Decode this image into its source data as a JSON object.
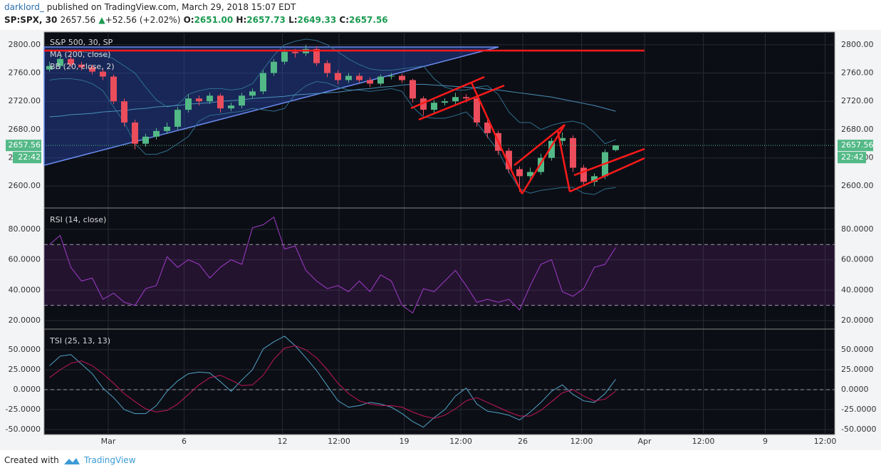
{
  "header": {
    "author": "darklord_",
    "published": "published on TradingView.com, March 29, 2018 15:07 EDT",
    "symbol": "SP:SPX, 30",
    "price": "2657.56",
    "change": "+52.56 (+2.02%)",
    "open_label": "O:",
    "open": "2651.00",
    "high_label": "H:",
    "high": "2657.73",
    "low_label": "L:",
    "low": "2649.33",
    "close_label": "C:",
    "close": "2657.56"
  },
  "footer": {
    "created_with": "Created with",
    "brand": "TradingView"
  },
  "chart_data": [
    {
      "type": "candlestick",
      "title": "S&P 500, 30, SP",
      "up_color": "#53b987",
      "down_color": "#eb4d5c",
      "open": [
        2765,
        2770,
        2780,
        2772,
        2768,
        2762,
        2755,
        2720,
        2690,
        2660,
        2670,
        2678,
        2684,
        2708,
        2724,
        2720,
        2728,
        2710,
        2714,
        2728,
        2734,
        2760,
        2776,
        2790,
        2788,
        2794,
        2774,
        2760,
        2750,
        2756,
        2750,
        2745,
        2755,
        2756,
        2750,
        2724,
        2708,
        2718,
        2720,
        2726,
        2724,
        2690,
        2675,
        2650,
        2624,
        2614,
        2620,
        2640,
        2664,
        2668,
        2626,
        2606,
        2614,
        2651
      ],
      "high": [
        2776,
        2784,
        2786,
        2776,
        2772,
        2766,
        2758,
        2724,
        2694,
        2674,
        2682,
        2690,
        2712,
        2730,
        2728,
        2732,
        2731,
        2718,
        2732,
        2738,
        2764,
        2780,
        2794,
        2794,
        2800,
        2798,
        2778,
        2764,
        2760,
        2760,
        2754,
        2758,
        2760,
        2759,
        2752,
        2727,
        2722,
        2724,
        2732,
        2730,
        2726,
        2694,
        2678,
        2654,
        2628,
        2626,
        2646,
        2668,
        2676,
        2672,
        2630,
        2618,
        2652,
        2657.73
      ],
      "low": [
        2762,
        2766,
        2768,
        2764,
        2758,
        2750,
        2716,
        2684,
        2652,
        2656,
        2666,
        2674,
        2680,
        2704,
        2714,
        2716,
        2704,
        2706,
        2710,
        2724,
        2730,
        2756,
        2772,
        2782,
        2784,
        2770,
        2754,
        2744,
        2746,
        2746,
        2740,
        2742,
        2751,
        2746,
        2718,
        2700,
        2704,
        2714,
        2716,
        2718,
        2684,
        2668,
        2644,
        2618,
        2592,
        2608,
        2616,
        2636,
        2658,
        2620,
        2600,
        2600,
        2610,
        2649.33
      ],
      "close": [
        2770,
        2780,
        2772,
        2768,
        2762,
        2755,
        2720,
        2690,
        2660,
        2670,
        2678,
        2684,
        2708,
        2724,
        2720,
        2728,
        2710,
        2714,
        2728,
        2734,
        2760,
        2776,
        2790,
        2788,
        2794,
        2774,
        2760,
        2750,
        2756,
        2750,
        2745,
        2755,
        2756,
        2750,
        2724,
        2708,
        2718,
        2720,
        2726,
        2724,
        2690,
        2675,
        2650,
        2624,
        2614,
        2620,
        2640,
        2664,
        2668,
        2626,
        2606,
        2614,
        2648,
        2657.56
      ],
      "series": [
        {
          "name": "MA (200, close)",
          "color": "#4a8fb8",
          "values": [
            2698,
            2699,
            2701,
            2702,
            2703,
            2705,
            2706,
            2707,
            2709,
            2710,
            2712,
            2713,
            2714,
            2716,
            2717,
            2718,
            2720,
            2721,
            2722,
            2724,
            2725,
            2726,
            2727,
            2729,
            2730,
            2731,
            2732,
            2733,
            2735,
            2737,
            2738,
            2740,
            2741,
            2743,
            2744,
            2744,
            2743,
            2742,
            2741,
            2740,
            2739,
            2737,
            2736,
            2734,
            2732,
            2730,
            2728,
            2726,
            2723,
            2720,
            2717,
            2714,
            2710,
            2706
          ]
        }
      ],
      "bb": {
        "name": "BB (20, close, 2)",
        "color": "#2f6f8f",
        "upper": [
          2790,
          2792,
          2792,
          2790,
          2788,
          2786,
          2780,
          2770,
          2760,
          2740,
          2722,
          2712,
          2715,
          2730,
          2735,
          2738,
          2738,
          2736,
          2738,
          2745,
          2765,
          2785,
          2800,
          2805,
          2808,
          2806,
          2800,
          2790,
          2780,
          2772,
          2766,
          2764,
          2764,
          2766,
          2768,
          2770,
          2752,
          2740,
          2736,
          2736,
          2740,
          2742,
          2730,
          2705,
          2690,
          2690,
          2680,
          2686,
          2690,
          2692,
          2688,
          2676,
          2660,
          2666
        ],
        "lower": [
          2750,
          2752,
          2752,
          2750,
          2745,
          2735,
          2712,
          2690,
          2660,
          2645,
          2645,
          2650,
          2660,
          2670,
          2692,
          2700,
          2702,
          2704,
          2706,
          2710,
          2708,
          2706,
          2710,
          2730,
          2742,
          2748,
          2746,
          2740,
          2736,
          2736,
          2734,
          2736,
          2738,
          2734,
          2712,
          2698,
          2696,
          2696,
          2700,
          2705,
          2690,
          2670,
          2650,
          2620,
          2596,
          2590,
          2594,
          2596,
          2598,
          2598,
          2590,
          2588,
          2596,
          2598
        ]
      },
      "last_price": {
        "value": 2657.56,
        "label": "2657.56"
      },
      "countdown": "22:42",
      "ylim": [
        2569,
        2818
      ],
      "yticks": [
        {
          "value": 2600,
          "label": "2600.00"
        },
        {
          "value": 2640,
          "label": "2640.00"
        },
        {
          "value": 2680,
          "label": "2680.00"
        },
        {
          "value": 2720,
          "label": "2720.00"
        },
        {
          "value": 2760,
          "label": "2760.00"
        },
        {
          "value": 2800,
          "label": "2800.00"
        }
      ],
      "grid": true
    },
    {
      "type": "line",
      "series": [
        {
          "name": "RSI (14, close)",
          "color": "#a03cc8",
          "values": [
            70,
            76,
            55,
            46,
            48,
            34,
            38,
            32,
            30,
            41,
            43,
            62,
            55,
            60,
            57,
            48,
            55,
            60,
            57,
            81,
            83,
            88,
            67,
            69,
            53,
            46,
            41,
            43,
            39,
            46,
            39,
            50,
            46,
            30,
            25,
            41,
            39,
            46,
            53,
            43,
            32,
            34,
            32,
            34,
            27,
            43,
            57,
            60,
            39,
            36,
            41,
            55,
            57,
            68
          ]
        }
      ],
      "bands": [
        70,
        30
      ],
      "ylim": [
        14.4,
        94
      ],
      "yticks": [
        {
          "value": 20,
          "label": "20.0000"
        },
        {
          "value": 40,
          "label": "40.0000"
        },
        {
          "value": 60,
          "label": "60.0000"
        },
        {
          "value": 80,
          "label": "80.0000"
        }
      ],
      "grid": true
    },
    {
      "type": "line",
      "series": [
        {
          "name": "TSI (25, 13, 13)",
          "color": "#4fa3c7",
          "values": [
            30,
            42,
            44,
            32,
            20,
            2,
            -10,
            -25,
            -30,
            -30,
            -20,
            -2,
            11,
            20,
            22,
            21,
            10,
            -2,
            12,
            25,
            51,
            60,
            67,
            55,
            40,
            24,
            5,
            -14,
            -22,
            -20,
            -16,
            -18,
            -22,
            -30,
            -40,
            -47,
            -35,
            -25,
            -8,
            2,
            -18,
            -27,
            -29,
            -32,
            -38,
            -28,
            -16,
            -2,
            6,
            -6,
            -14,
            -16,
            -5,
            13
          ]
        },
        {
          "color": "#c2185b",
          "values": [
            15,
            25,
            33,
            36,
            30,
            20,
            8,
            -5,
            -15,
            -24,
            -28,
            -26,
            -18,
            -6,
            6,
            15,
            18,
            12,
            5,
            6,
            18,
            38,
            52,
            55,
            50,
            40,
            25,
            8,
            -5,
            -14,
            -18,
            -20,
            -20,
            -22,
            -28,
            -33,
            -36,
            -32,
            -24,
            -14,
            -10,
            -16,
            -22,
            -28,
            -33,
            -33,
            -26,
            -15,
            -4,
            0,
            -8,
            -14,
            -12,
            -2
          ]
        }
      ],
      "bands": [
        0
      ],
      "ylim": [
        -56.25,
        75.9
      ],
      "yticks": [
        {
          "value": -50,
          "label": "-50.0000"
        },
        {
          "value": -25,
          "label": "-25.0000"
        },
        {
          "value": 0,
          "label": "0.0000"
        },
        {
          "value": 25,
          "label": "25.0000"
        },
        {
          "value": 50,
          "label": "50.0000"
        }
      ],
      "grid": true,
      "xlim": [
        -0.5,
        73.5
      ],
      "xticks": [
        {
          "value": 5.5,
          "label": "Mar"
        },
        {
          "value": 12.6,
          "label": "6"
        },
        {
          "value": 21.8,
          "label": "12"
        },
        {
          "value": 27.1,
          "label": "12:00"
        },
        {
          "value": 33.2,
          "label": "19"
        },
        {
          "value": 38.5,
          "label": "12:00"
        },
        {
          "value": 44.3,
          "label": "26"
        },
        {
          "value": 49.8,
          "label": "12:00"
        },
        {
          "value": 55.7,
          "label": "Apr"
        },
        {
          "value": 61.2,
          "label": "12:00"
        },
        {
          "value": 67,
          "label": "9"
        },
        {
          "value": 72.6,
          "label": "12:00"
        }
      ]
    }
  ]
}
